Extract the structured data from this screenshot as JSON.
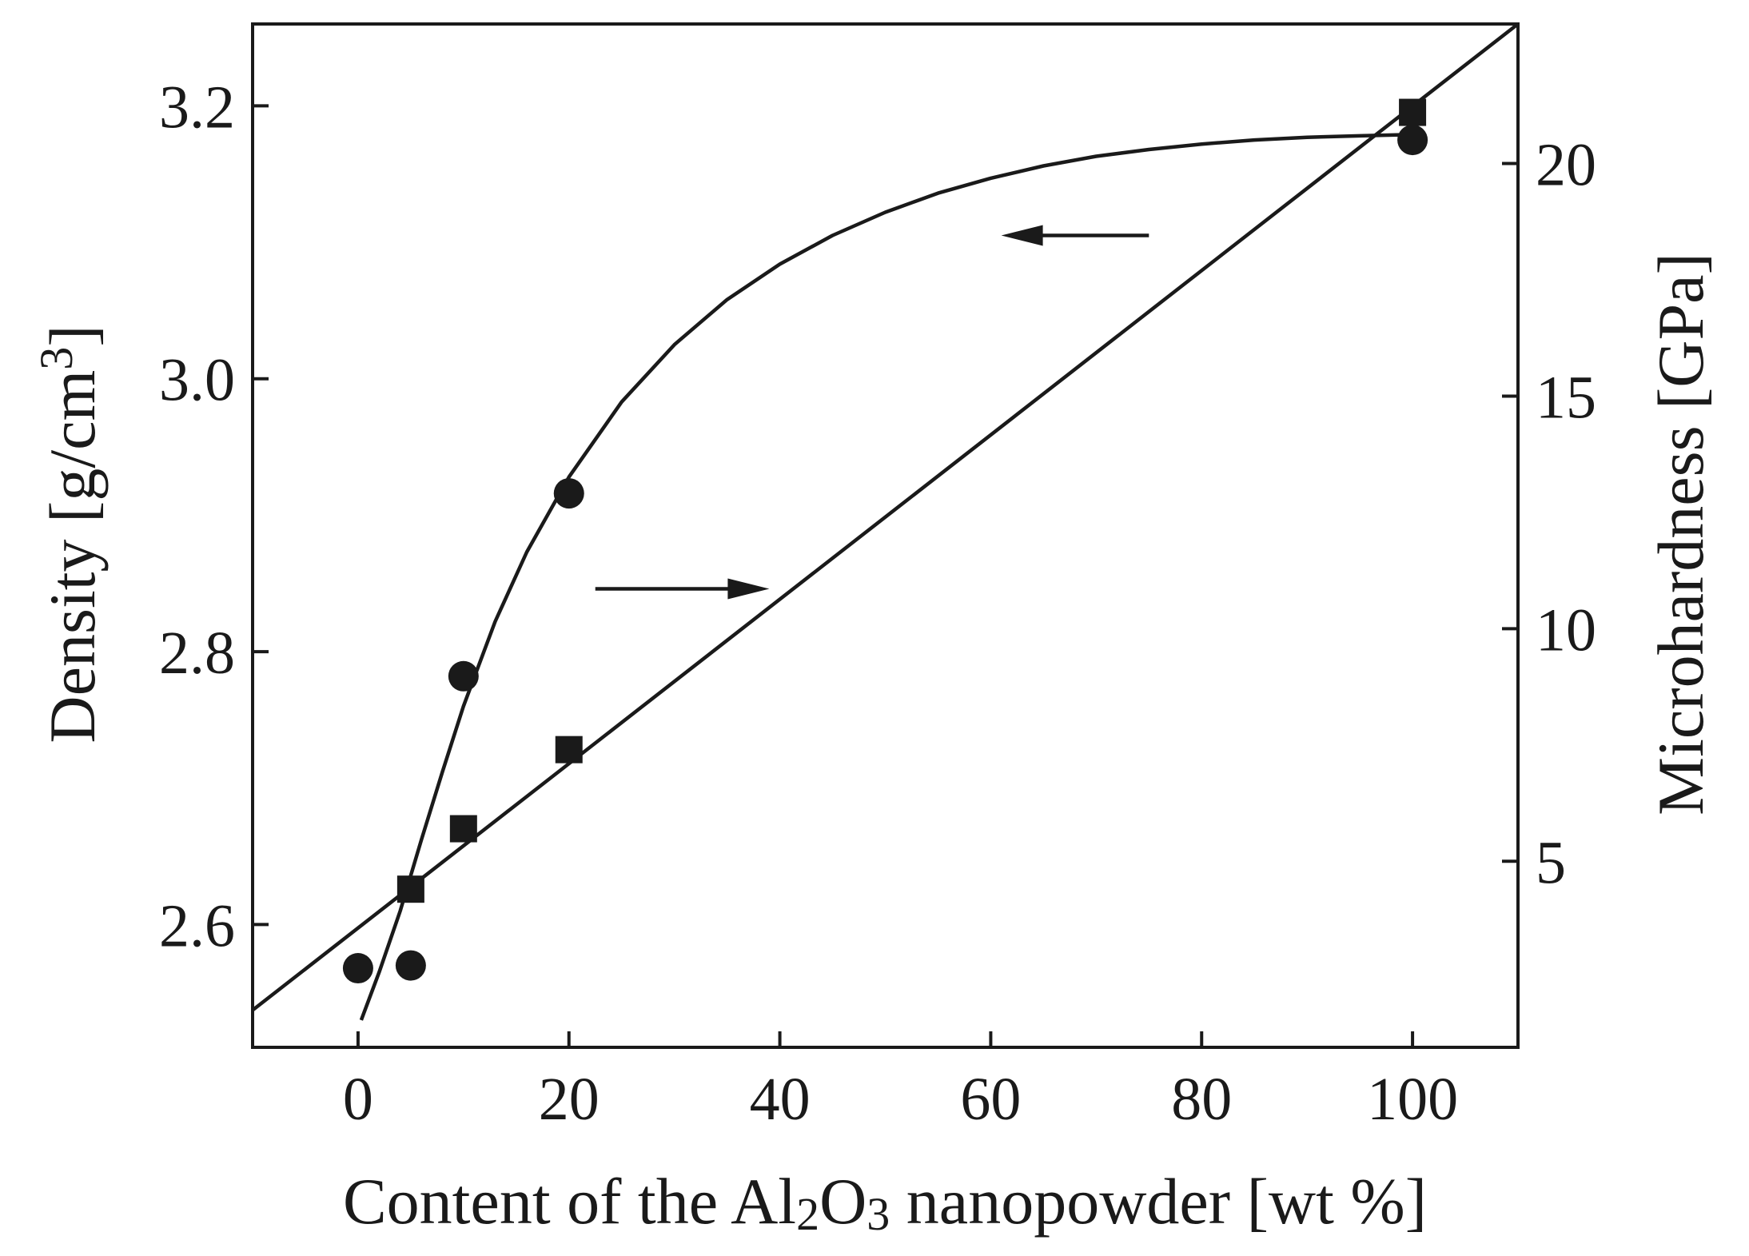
{
  "chart_data": {
    "type": "scatter",
    "title": "",
    "xlabel": {
      "prefix": "Content of the Al",
      "sub1": "2",
      "mid": "O",
      "sub2": "3",
      "suffix": " nanopowder [wt %]"
    },
    "ylabel_left": {
      "main": "Density [g/cm",
      "sup": "3",
      "close": "]"
    },
    "ylabel_right": "Microhardness [GPa]",
    "xlim": [
      -10,
      110
    ],
    "ylim_left": [
      2.51,
      3.26
    ],
    "ylim_right": [
      1.0,
      23.0
    ],
    "x_ticks": [
      "0",
      "20",
      "40",
      "60",
      "80",
      "100"
    ],
    "y_left_ticks": [
      "2.6",
      "2.8",
      "3.0",
      "3.2"
    ],
    "y_right_ticks": [
      "5",
      "10",
      "15",
      "20"
    ],
    "series": [
      {
        "marker": "circle",
        "axis": "left",
        "x": [
          0,
          5,
          10,
          20,
          100
        ],
        "y": [
          2.568,
          2.57,
          2.782,
          2.916,
          3.175
        ],
        "fit_x": [
          0.3,
          2,
          4,
          6,
          8,
          10,
          13,
          16,
          20,
          25,
          30,
          35,
          40,
          45,
          50,
          55,
          60,
          65,
          70,
          75,
          80,
          85,
          90,
          95,
          100
        ],
        "fit_y": [
          2.53,
          2.565,
          2.61,
          2.662,
          2.712,
          2.76,
          2.822,
          2.873,
          2.928,
          2.983,
          3.025,
          3.058,
          3.084,
          3.105,
          3.122,
          3.136,
          3.147,
          3.156,
          3.163,
          3.168,
          3.172,
          3.175,
          3.177,
          3.178,
          3.179
        ]
      },
      {
        "marker": "square",
        "axis": "right",
        "x": [
          5,
          10,
          20,
          100
        ],
        "y": [
          4.4,
          5.7,
          7.4,
          21.1
        ],
        "fit_x": [
          -10,
          110
        ],
        "fit_y": [
          1.8,
          23.0
        ]
      }
    ],
    "annotations": [
      {
        "type": "arrow",
        "direction": "left",
        "target_axis": "left",
        "x_from": 75,
        "x_to": 61,
        "y_left": 3.105
      },
      {
        "type": "arrow",
        "direction": "right",
        "target_axis": "right",
        "x_from": 22.5,
        "x_to": 39,
        "y_left": 2.846
      }
    ]
  }
}
